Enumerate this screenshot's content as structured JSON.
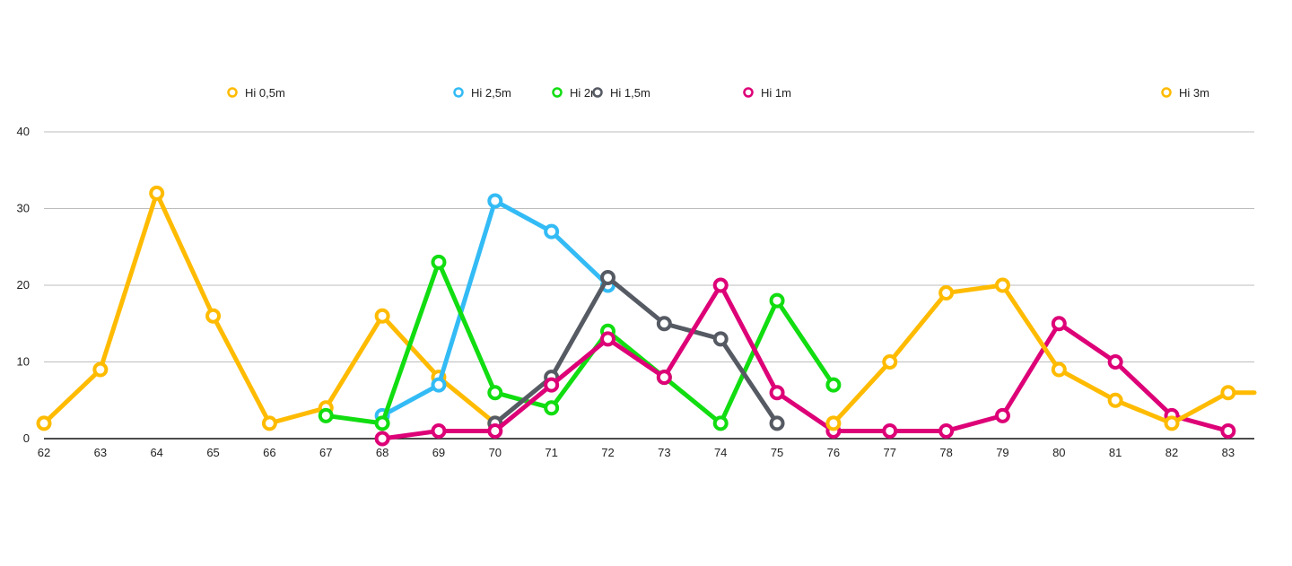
{
  "chart_data": {
    "type": "line",
    "x_axis": {
      "ticks": [
        62,
        63,
        64,
        65,
        66,
        67,
        68,
        69,
        70,
        71,
        72,
        73,
        74,
        75,
        76,
        77,
        78,
        79,
        80,
        81,
        82,
        83
      ],
      "tick_labels": [
        "62",
        "63",
        "64",
        "65",
        "66",
        "67",
        "68",
        "69",
        "70",
        "71",
        "72",
        "73",
        "74",
        "75",
        "76",
        "77",
        "78",
        "79",
        "80",
        "81",
        "82",
        "83"
      ]
    },
    "y_axis": {
      "ticks": [
        0,
        10,
        20,
        30,
        40
      ],
      "tick_labels": [
        "0",
        "10",
        "20",
        "30",
        "40"
      ],
      "ylim": [
        0,
        40
      ]
    },
    "grid": "horizontal",
    "series": [
      {
        "name": "Hi 0,5m",
        "color": "#FFBB00",
        "points": [
          [
            62,
            2
          ],
          [
            63,
            9
          ],
          [
            64,
            32
          ],
          [
            65,
            16
          ],
          [
            66,
            2
          ],
          [
            67,
            4
          ],
          [
            68,
            16
          ],
          [
            69,
            8
          ],
          [
            70,
            2
          ]
        ]
      },
      {
        "name": "Hi 2,5m",
        "color": "#33BBF5",
        "points": [
          [
            68,
            3
          ],
          [
            69,
            7
          ],
          [
            70,
            31
          ],
          [
            71,
            27
          ],
          [
            72,
            20
          ]
        ]
      },
      {
        "name": "Hi 2m",
        "color": "#11DD11",
        "points": [
          [
            67,
            3
          ],
          [
            68,
            2
          ],
          [
            69,
            23
          ],
          [
            70,
            6
          ],
          [
            71,
            4
          ],
          [
            72,
            14
          ],
          [
            73,
            8
          ],
          [
            74,
            2
          ],
          [
            75,
            18
          ],
          [
            76,
            7
          ]
        ]
      },
      {
        "name": "Hi 1,5m",
        "color": "#555A63",
        "points": [
          [
            70,
            2
          ],
          [
            71,
            8
          ],
          [
            72,
            21
          ],
          [
            73,
            15
          ],
          [
            74,
            13
          ],
          [
            75,
            2
          ]
        ]
      },
      {
        "name": "Hi 1m",
        "color": "#DD0077",
        "points": [
          [
            68,
            0
          ],
          [
            69,
            1
          ],
          [
            70,
            1
          ],
          [
            71,
            7
          ],
          [
            72,
            13
          ],
          [
            73,
            8
          ],
          [
            74,
            20
          ],
          [
            75,
            6
          ],
          [
            76,
            1
          ],
          [
            77,
            1
          ],
          [
            78,
            1
          ],
          [
            79,
            3
          ],
          [
            80,
            15
          ],
          [
            81,
            10
          ],
          [
            82,
            3
          ],
          [
            83,
            1
          ]
        ]
      },
      {
        "name": "Hi 3m",
        "color": "#FFBB00",
        "points": [
          [
            76,
            2
          ],
          [
            77,
            10
          ],
          [
            78,
            19
          ],
          [
            79,
            20
          ],
          [
            80,
            9
          ],
          [
            81,
            5
          ],
          [
            82,
            2
          ],
          [
            83,
            6
          ],
          [
            83.5,
            6
          ]
        ]
      }
    ],
    "legend": {
      "position": "top",
      "entries": [
        "Hi 0,5m",
        "Hi 2,5m",
        "Hi 2m",
        "Hi 1,5m",
        "Hi 1m",
        "Hi 3m"
      ]
    }
  }
}
